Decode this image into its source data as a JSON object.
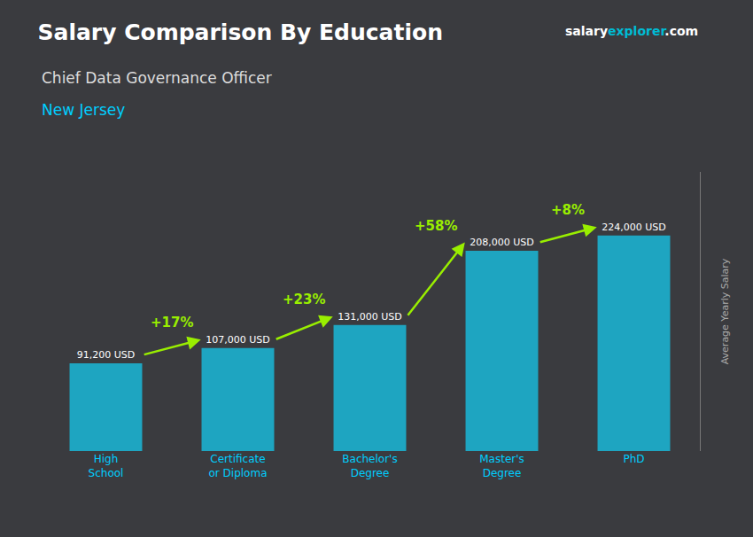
{
  "chart_data": {
    "type": "bar",
    "title": "Salary Comparison By Education",
    "subtitle": "Chief Data Governance Officer",
    "ylabel": "Average Yearly Salary",
    "categories": [
      "High\nSchool",
      "Certificate\nor Diploma",
      "Bachelor's\nDegree",
      "Master's\nDegree",
      "PhD"
    ],
    "values": [
      91200,
      107000,
      131000,
      208000,
      224000
    ],
    "value_labels": [
      "91,200 USD",
      "107,000 USD",
      "131,000 USD",
      "208,000 USD",
      "224,000 USD"
    ],
    "data_labels": true,
    "color": "#1ab8d8",
    "ylim": [
      0,
      290000
    ],
    "grid": false,
    "tick_labels": "x",
    "annotations": [
      {
        "text": "New Jersey",
        "color": "#00cfff"
      },
      {
        "text": [
          "salary",
          "explorer",
          ".com"
        ],
        "colors": [
          "#ffffff",
          "#00bcd4",
          "#ffffff"
        ]
      },
      {
        "text": "+17%",
        "from": "High\nSchool",
        "to": "Certificate\nor Diploma",
        "color": "#99ee00"
      },
      {
        "text": "+23%",
        "from": "Certificate\nor Diploma",
        "to": "Bachelor's\nDegree",
        "color": "#99ee00"
      },
      {
        "text": "+58%",
        "from": "Bachelor's\nDegree",
        "to": "Master's\nDegree",
        "color": "#99ee00"
      },
      {
        "text": "+8%",
        "from": "Master's\nDegree",
        "to": "PhD",
        "color": "#99ee00"
      }
    ]
  }
}
